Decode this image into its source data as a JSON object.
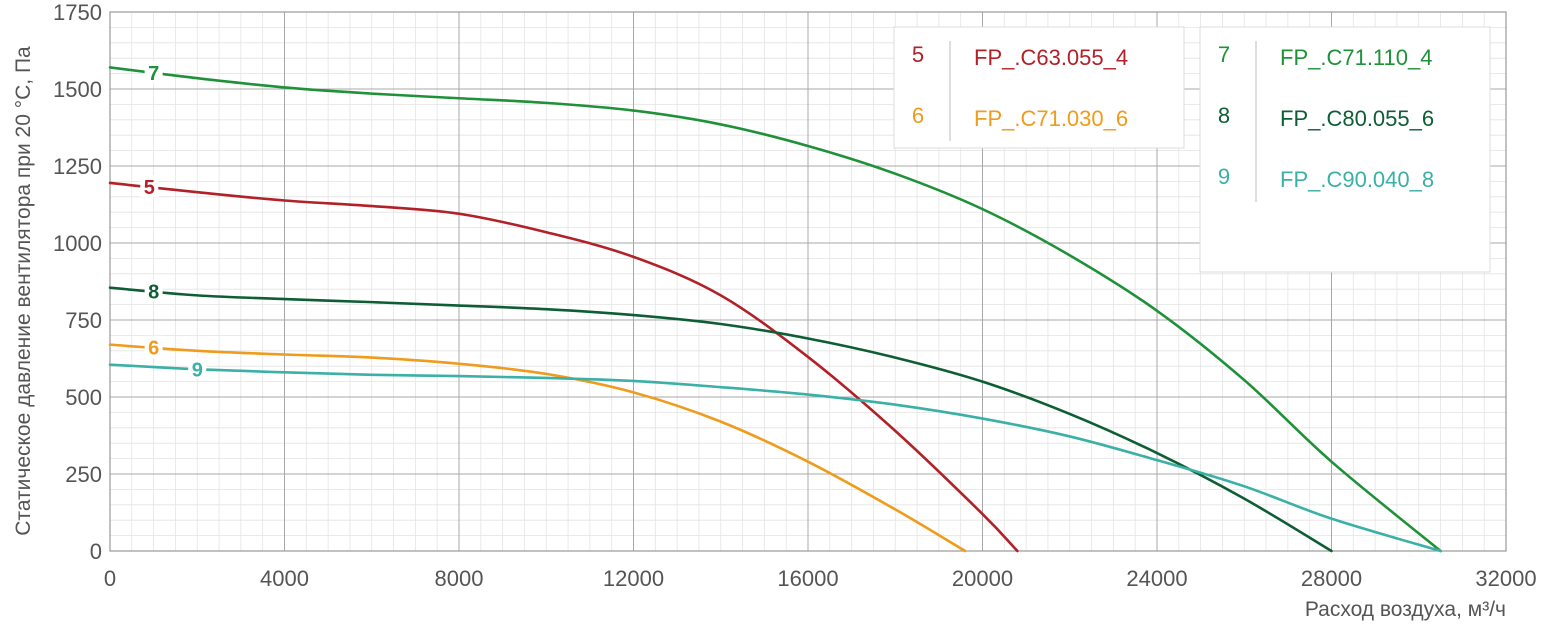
{
  "chart_data": {
    "type": "line",
    "xlabel": "Расход воздуха, м³/ч",
    "ylabel": "Статическое давление вентилятора при 20 °С, Па",
    "xlim": [
      0,
      32000
    ],
    "ylim": [
      0,
      1750
    ],
    "xticks": [
      0,
      4000,
      8000,
      12000,
      16000,
      20000,
      24000,
      28000,
      32000
    ],
    "yticks": [
      0,
      250,
      500,
      750,
      1000,
      1250,
      1500,
      1750
    ],
    "grid": true,
    "legend_position": "top-right",
    "legend_groups": [
      [
        "5",
        "6"
      ],
      [
        "7",
        "8",
        "9"
      ]
    ],
    "series": [
      {
        "id": "5",
        "name": "FP_.C63.055_4",
        "color": "#b22028",
        "points": [
          [
            0,
            1195
          ],
          [
            2000,
            1165
          ],
          [
            4000,
            1138
          ],
          [
            6000,
            1120
          ],
          [
            8000,
            1095
          ],
          [
            10000,
            1035
          ],
          [
            12000,
            955
          ],
          [
            14000,
            830
          ],
          [
            16000,
            630
          ],
          [
            18000,
            390
          ],
          [
            20000,
            120
          ],
          [
            20800,
            0
          ]
        ]
      },
      {
        "id": "6",
        "name": "FP_.C71.030_6",
        "color": "#ef9b1c",
        "points": [
          [
            0,
            670
          ],
          [
            2000,
            650
          ],
          [
            4000,
            638
          ],
          [
            6000,
            628
          ],
          [
            8000,
            608
          ],
          [
            10000,
            575
          ],
          [
            12000,
            515
          ],
          [
            14000,
            420
          ],
          [
            16000,
            290
          ],
          [
            18000,
            135
          ],
          [
            19600,
            0
          ]
        ]
      },
      {
        "id": "7",
        "name": "FP_.C71.110_4",
        "color": "#1e9139",
        "points": [
          [
            0,
            1570
          ],
          [
            2000,
            1535
          ],
          [
            4000,
            1505
          ],
          [
            6000,
            1485
          ],
          [
            8000,
            1470
          ],
          [
            10000,
            1455
          ],
          [
            12000,
            1430
          ],
          [
            14000,
            1385
          ],
          [
            16000,
            1315
          ],
          [
            18000,
            1225
          ],
          [
            20000,
            1110
          ],
          [
            22000,
            960
          ],
          [
            24000,
            780
          ],
          [
            26000,
            555
          ],
          [
            28000,
            290
          ],
          [
            30500,
            0
          ]
        ]
      },
      {
        "id": "8",
        "name": "FP_.C80.055_6",
        "color": "#0d5e35",
        "points": [
          [
            0,
            855
          ],
          [
            2000,
            830
          ],
          [
            4000,
            818
          ],
          [
            6000,
            808
          ],
          [
            8000,
            797
          ],
          [
            10000,
            785
          ],
          [
            12000,
            766
          ],
          [
            14000,
            737
          ],
          [
            16000,
            690
          ],
          [
            18000,
            628
          ],
          [
            20000,
            550
          ],
          [
            22000,
            445
          ],
          [
            24000,
            318
          ],
          [
            26000,
            170
          ],
          [
            28000,
            0
          ]
        ]
      },
      {
        "id": "9",
        "name": "FP_.C90.040_8",
        "color": "#3ab0a6",
        "points": [
          [
            0,
            605
          ],
          [
            2000,
            590
          ],
          [
            4000,
            580
          ],
          [
            6000,
            572
          ],
          [
            8000,
            568
          ],
          [
            10000,
            562
          ],
          [
            12000,
            552
          ],
          [
            14000,
            532
          ],
          [
            16000,
            508
          ],
          [
            18000,
            475
          ],
          [
            20000,
            430
          ],
          [
            22000,
            372
          ],
          [
            24000,
            295
          ],
          [
            26000,
            210
          ],
          [
            28000,
            105
          ],
          [
            30500,
            0
          ]
        ]
      }
    ]
  }
}
